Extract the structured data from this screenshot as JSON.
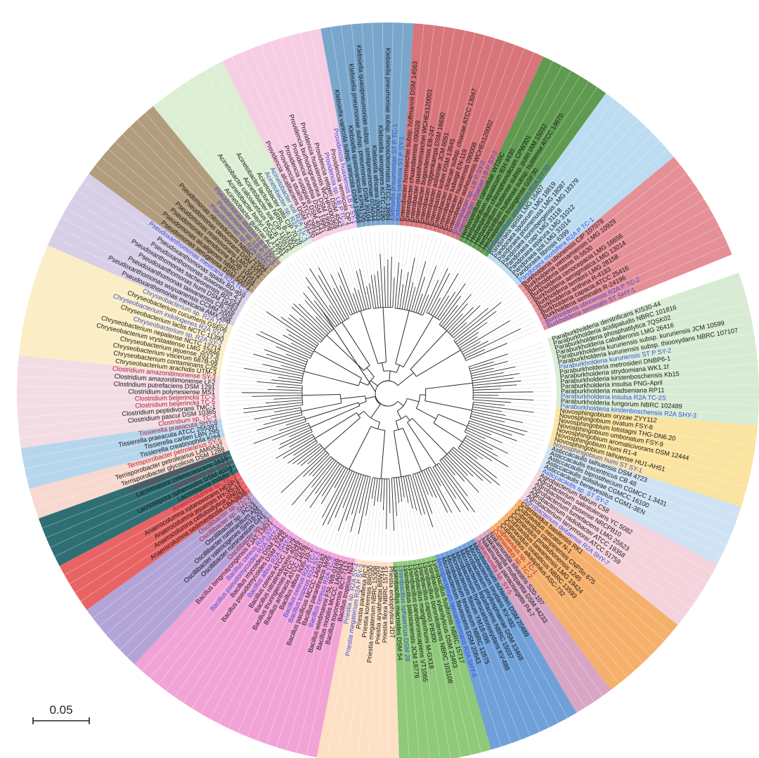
{
  "scale_bar": {
    "label": "0.05"
  },
  "colors": {
    "ref": "#1a1a1a",
    "isolate_blue": "#3a4fd8",
    "isolate_red": "#b0213a",
    "branch": "#2a2a2a"
  },
  "clades": [
    {
      "name": "Paraburkholderia",
      "color": "#d8ecd3",
      "leaves": [
        {
          "t": "Paraburkholderia denitrificans KIS30-44"
        },
        {
          "t": "Paraburkholderia acidipaludis NBRC 101816"
        },
        {
          "t": "Paraburkholderia phosphatilytica 7QSK02"
        },
        {
          "t": "Paraburkholderia caballeronis LMG 26416"
        },
        {
          "t": "Paraburkholderia kururiensis subsp. kururiensis JCM 10599"
        },
        {
          "t": "Paraburkholderia kururiensis subsp. thiooxydans NBRC 107107"
        },
        {
          "t": "Paraburkholderia kururiensis ST P SY-2",
          "c": "b"
        },
        {
          "t": "Paraburkholderia metrosideri DNBP6-1"
        },
        {
          "t": "Paraburkholderia strydomiana WK1.1f"
        },
        {
          "t": "Paraburkholderia kirstenboschensis Kb15"
        },
        {
          "t": "Paraburkholderia insulsa PNG-April"
        },
        {
          "t": "Paraburkholderia madseniana RP11"
        },
        {
          "t": "Paraburkholderia insulsa R2A TC-2S",
          "c": "b"
        },
        {
          "t": "Paraburkholderia fungorum NBRC 102489"
        },
        {
          "t": "Paraburkholderia kirstenboschensis R2A SHY-3",
          "c": "b"
        }
      ]
    },
    {
      "name": "Novosphingobium",
      "color": "#fbe3a0",
      "leaves": [
        {
          "t": "Novosphingobium oryzae ZYY112"
        },
        {
          "t": "Novosphingobium ovatum FSY-8"
        },
        {
          "t": "Novosphingobium lotistagni THG-DN6.20"
        },
        {
          "t": "Novosphingobium umbonatum FSY-9"
        },
        {
          "t": "Novosphingobium aromaticivorans DSM 12444"
        },
        {
          "t": "Novosphingobium humi R1-4"
        },
        {
          "t": "Novosphingobium taihuense HU1-AH51"
        },
        {
          "t": "Novosphingobium humi ST SY-1",
          "c": "b"
        }
      ]
    },
    {
      "name": "Asticcacaulis",
      "color": "#cfe2f3",
      "leaves": [
        {
          "t": "Asticcacaulis taihuensis DSM 4723"
        },
        {
          "t": "Asticcacaulis excentricus CB 48"
        },
        {
          "t": "Asticcacaulis biprosthecium CGMCC 1.3431"
        },
        {
          "t": "Asticcacaulis solisilvae CGMCC 16100"
        },
        {
          "t": "Asticcacaulis benevestitus CGM1-3EN"
        },
        {
          "t": "Asticcacaulis sp. ST SY-2",
          "c": "b"
        }
      ]
    },
    {
      "name": "Agrobacterium",
      "color": "#f4d3dc",
      "leaves": [
        {
          "t": "Agrobacterium fabrum C58"
        },
        {
          "t": "Agrobacterium salinitolerans YC 5082"
        },
        {
          "t": "Agrobacterium pusense NRCPB10"
        },
        {
          "t": "Agrobacterium tumefaciens LMG 25623"
        },
        {
          "t": "Agrobacterium radiobacter ATCC 19358"
        },
        {
          "t": "Agrobacterium larrymoorei ATCC 51759"
        },
        {
          "t": "Agrobacterium deltaense R2A SHY-7",
          "c": "b"
        }
      ]
    },
    {
      "name": "Cupriavidus",
      "color": "#f5b06b",
      "leaves": [
        {
          "t": "Cupriavidus basilensis RK1"
        },
        {
          "t": "Cupriavidus necator N-1"
        },
        {
          "t": "Cupriavidus campinensis CNPSo 675"
        },
        {
          "t": "Cupriavidus pinatubonensis 1245"
        },
        {
          "t": "Cupriavidus taiwanensis LMG 19424"
        },
        {
          "t": "Cupriavidus oxalaticus NBRC 13593"
        },
        {
          "t": "Cupriavidus alkaliphilus ASC-732"
        },
        {
          "t": "Cupriavidus sp. TC-1",
          "c": "r"
        },
        {
          "t": "Cupriavidus sp. TC-2",
          "c": "r"
        }
      ]
    },
    {
      "name": "Nakamurella",
      "color": "#d8a6c4",
      "leaves": [
        {
          "t": "Nakamurella silvestris S20-107"
        },
        {
          "t": "Nakamurella multipartita DSM 44233"
        },
        {
          "t": "Nakamurella panacisegetis P4-7"
        },
        {
          "t": "Nakamurella sp. SY-5",
          "c": "r"
        }
      ]
    },
    {
      "name": "Microbacterium",
      "color": "#6fa0d8",
      "leaves": [
        {
          "t": "Microbacterium schleiferi DSM 20489"
        },
        {
          "t": "Microbacterium oxydans KV-492"
        },
        {
          "t": "Microbacterium phyllosphaerae DSM 13468"
        },
        {
          "t": "Microbacterium liquefaciens NBRC 15037"
        },
        {
          "t": "Microbacterium hydrocarbonoxydans KV-488"
        },
        {
          "t": "Microbacterium flavum YM18-098"
        },
        {
          "t": "Microbacterium testaceum NBRC 12675"
        },
        {
          "t": "Microbacterium flavescens DSM 20643"
        },
        {
          "t": "Microbacterium laevaniformans R2A SHY-6",
          "c": "b"
        }
      ]
    },
    {
      "name": "Lysinibacillus",
      "color": "#8fc97a",
      "leaves": [
        {
          "t": "Lysinibacillus fusiformis NBRC 15717"
        },
        {
          "t": "Lysinibacillus xylanilyticus DSM 23493"
        },
        {
          "t": "Lysinibacillus boronitolerans NBRC 103108"
        },
        {
          "t": "Lysinibacillus capsici PB300"
        },
        {
          "t": "Lysinibacillus mangiferihumi M-GX18"
        },
        {
          "t": "Lysinibacillus parviboronicapiens VT1065"
        },
        {
          "t": "Lysinibacillus pakistanensis JCM 18776"
        },
        {
          "t": "Lysinibacillus sphaericus DSM 28",
          "c": "b"
        },
        {
          "t": "Lysinibacillus macroides DSM 54"
        }
      ]
    },
    {
      "name": "Priestia",
      "color": "#fde0c5",
      "leaves": [
        {
          "t": "Priestia endophytica 2DT"
        },
        {
          "t": "Priestia flexa NBRC 15715"
        },
        {
          "t": "Priestia aryabhattai B8W22"
        },
        {
          "t": "Priestia megaterium NBRC 15308"
        },
        {
          "t": "Priestia koreensis BR030"
        },
        {
          "t": "Priestia paraflexa RC2"
        },
        {
          "t": "Priestia megaterium R2A P SY-3",
          "c": "b"
        },
        {
          "t": "Priestia sp. R2A SY-4",
          "c": "b"
        }
      ]
    },
    {
      "name": "Bacillus",
      "color": "#f2a3d6",
      "leaves": [
        {
          "t": "Bacillus tropicus N24"
        },
        {
          "t": "Bacillus toyonensis BCT-7112"
        },
        {
          "t": "Bacillus mobilis MCCC 1A05942"
        },
        {
          "t": "Bacillus wiedmannii FSL W8-0169"
        },
        {
          "t": "Bacillus cereus R2A TC-2",
          "c": "b"
        },
        {
          "t": "Bacillus paranthracis Mn5"
        },
        {
          "t": "Bacillus pacificus MCCC 1A06182"
        },
        {
          "t": "Bacillus tropicus R2A SY-2",
          "c": "b"
        },
        {
          "t": "Bacillus cereus R2A TC-1",
          "c": "b"
        },
        {
          "t": "Bacillus albus N35-10-2"
        },
        {
          "t": "Bacillus anthracis ATCC 14578"
        },
        {
          "t": "Bacillus thuringiensis ATCC 10792"
        },
        {
          "t": "Bacillus nitratireducens 4049"
        },
        {
          "t": "Bacillus cereus ATCC 14579"
        },
        {
          "t": "Bacillus albus R2A SHY-5",
          "c": "b"
        },
        {
          "t": "Bacillus pseudomycoides DSM 12442"
        },
        {
          "t": "Bacillus mycoides DSM 2048"
        },
        {
          "t": "Bacillus pseudomycoides R2A SHY-4",
          "c": "b"
        },
        {
          "t": "Bacillus cereus R2A SY-1",
          "c": "b"
        },
        {
          "t": "Bacillus bingmayongensis FJAT-13831"
        }
      ]
    },
    {
      "name": "Oscillibacter",
      "color": "#b3a4d8",
      "leaves": [
        {
          "t": "Oscillibacter sp. 1-3",
          "c": "r"
        },
        {
          "t": "Oscillibacter ruminantium GH1"
        },
        {
          "t": "Oscillibacter valericigenes Sjm18-20"
        },
        {
          "t": "Oscillibacter ruminantium AM"
        },
        {
          "t": "Oscillibacter sp. PC13"
        },
        {
          "t": "Oscillibacter sp. SHY-2",
          "c": "r"
        },
        {
          "t": "Oscillibacter sp. TC-3",
          "c": "r"
        }
      ]
    },
    {
      "name": "Anaerocolumna",
      "color": "#e86464",
      "leaves": [
        {
          "t": "Anaerocolumna sedimenticola CBA3638"
        },
        {
          "t": "Anaerocolumna cellulosilytica SN021"
        },
        {
          "t": "Anaerocolumna jejuensis HY-35-12"
        },
        {
          "t": "Anaerocolumna xylanovorans HESP1"
        },
        {
          "t": "Anaerocolumna sp. TC-2",
          "c": "r"
        }
      ]
    },
    {
      "name": "Lacrimispora",
      "color": "#2f6f74",
      "leaves": [
        {
          "t": "Lacrimispora indolis T"
        },
        {
          "t": "Lacrimispora sphenoides DSM 4024"
        },
        {
          "t": "Lacrimispora sp. SY-4",
          "c": "r"
        },
        {
          "t": "Lacrimispora celerecrescens JA19"
        },
        {
          "t": "Lacrimispora celerecrescens SHY-3",
          "c": "r"
        }
      ]
    },
    {
      "name": "Terrisporobacter",
      "color": "#f7d9d0",
      "leaves": [
        {
          "t": "Terrisporobacter glycolicus DSM 1288"
        },
        {
          "t": "Terrisporobacter petrolearius LAM0A37"
        },
        {
          "t": "Terrisporobacter petrolearius SY-5",
          "c": "r"
        }
      ]
    },
    {
      "name": "Tissierella",
      "color": "#b6d6ee",
      "leaves": [
        {
          "t": "Tissierella creatinophila Kre4"
        },
        {
          "t": "Tissierella carlieri LBN 295"
        },
        {
          "t": "Tissierella praeacuta ATCC 25539T"
        },
        {
          "t": "Tissierella praeacuta SHY-4",
          "c": "r"
        }
      ]
    },
    {
      "name": "Clostridium",
      "color": "#f3dde4",
      "leaves": [
        {
          "t": "Clostridium sp. TC-4",
          "c": "r"
        },
        {
          "t": "Clostridium pascui DSM 10365"
        },
        {
          "t": "Clostridium peptidivorans TMC-1"
        },
        {
          "t": "Clostridium beijerinckii TC-5",
          "c": "r"
        },
        {
          "t": "Clostridium beijerinckii TC-3",
          "c": "r"
        },
        {
          "t": "Clostridium polynesiense MS1"
        },
        {
          "t": "Clostridium putrefaciens DSM 1291"
        },
        {
          "t": "Clostridium amazonitimonense LF2"
        },
        {
          "t": "Clostridium amazonitimonense SY-3",
          "c": "r"
        }
      ]
    },
    {
      "name": "Chryseobacterium",
      "color": "#fbeec5",
      "leaves": [
        {
          "t": "Chryseobacterium arachidis UTM-3"
        },
        {
          "t": "Chryseobacterium contaminans C26"
        },
        {
          "t": "Chryseobacterium viscerum 687B-08"
        },
        {
          "t": "Chryseobacterium jejuense JS17-8"
        },
        {
          "t": "Chryseobacterium vrystaatense LMG 22846"
        },
        {
          "t": "Chryseobacterium nepalense NCTC 12714"
        },
        {
          "t": "Chryseobacterium sp. R2A SY-2",
          "c": "b"
        },
        {
          "t": "Chryseobacterium lactis NCTC 11390"
        },
        {
          "t": "Chryseobacterium indologenes R2A SY-1",
          "c": "b"
        },
        {
          "t": "Chryseobacterium cucumeris GSE06"
        },
        {
          "t": "Chryseobacterium sp. R2A TC-1",
          "c": "b"
        }
      ]
    },
    {
      "name": "Pseudoxanthomonas",
      "color": "#d7cfe8",
      "leaves": [
        {
          "t": "Pseudoxanthomonas mexicana AMX 26B"
        },
        {
          "t": "Pseudoxanthomonas wuyuanensis CCMM 2005"
        },
        {
          "t": "Pseudoxanthomonas taiwanensis CB-226"
        },
        {
          "t": "Pseudoxanthomonas humi DSM 18483"
        },
        {
          "t": "Pseudoxanthomonas sacheonensis BD-c54"
        },
        {
          "t": "Pseudoxanthomonas suwonensis 4-1"
        },
        {
          "t": "Pseudoxanthomonas spadix BD-a59"
        },
        {
          "t": "Pseudoxanthomonas mexicana R2A TC-2",
          "c": "b"
        }
      ]
    },
    {
      "name": "Pseudomonas",
      "color": "#b29c7e",
      "leaves": [
        {
          "t": "Pseudomonas aeruginosa DSM 50071"
        },
        {
          "t": "Pseudomonas alcaligenes NBRC 14159"
        },
        {
          "t": "Pseudomonas mendocina NCIB 10541"
        },
        {
          "t": "Pseudomonas resinovorans LMG 2274"
        },
        {
          "t": "Pseudomonas oleovorans DSM 1045"
        },
        {
          "t": "Pseudomonas nitroreducens NBRC 12694"
        },
        {
          "t": "Pseudomonas sp. R2A SHY-1",
          "c": "b"
        },
        {
          "t": "Pseudomonas sp. LB P TC-3",
          "c": "b"
        },
        {
          "t": "Pseudomonas stutzeri LB P TC-1",
          "c": "b"
        }
      ]
    },
    {
      "name": "Acinetobacter",
      "color": "#dcefd4",
      "leaves": [
        {
          "t": "Acinetobacter guerrae AC1271"
        },
        {
          "t": "Acinetobacter baylyi DSM 14961"
        },
        {
          "t": "Acinetobacter calcoaceticus NCCB 22016"
        },
        {
          "t": "Acinetobacter soli CIP 110264"
        },
        {
          "t": "Acinetobacter lactucae NRRL B-41902"
        },
        {
          "t": "Acinetobacter pittii CIP 70.29"
        },
        {
          "t": "Acinetobacter sp. R2A TC-3",
          "c": "b"
        },
        {
          "t": "Acinetobacter soli R2A TC-1",
          "c": "b"
        }
      ]
    },
    {
      "name": "Providencia",
      "color": "#f7cde4",
      "leaves": [
        {
          "t": "Providencia alcalifaciens DSM 30120"
        },
        {
          "t": "Providencia stuartii ATCC 29914"
        },
        {
          "t": "Providencia rustigianii DSM 4541"
        },
        {
          "t": "Providencia sneebia DSM 19967"
        },
        {
          "t": "Providencia burhodogranariea DSM 19968"
        },
        {
          "t": "Providencia huaxiensis WCHPr000369"
        },
        {
          "t": "Providencia rettgeri DSM 4542"
        },
        {
          "t": "Providencia sp. LB P TC-2",
          "c": "b"
        },
        {
          "t": "Providencia vermicola OP1"
        },
        {
          "t": "Providencia huaxiensis LB P SY-1",
          "c": "b"
        }
      ]
    },
    {
      "name": "Klebsiella",
      "color": "#7aa6cc",
      "leaves": [
        {
          "t": "Klebsiella variicola subsp. variicola DSM 15968"
        },
        {
          "t": "Klebsiella quasivariicola KPN1705"
        },
        {
          "t": "Klebsiella pneumoniae subsp. pneumoniae DSM 30104"
        },
        {
          "t": "Klebsiella quasipneumoniae subsp. similipneumoniae 07A044"
        },
        {
          "t": "Klebsiella africana 200023"
        },
        {
          "t": "Klebsiella aerogenes KCTC 2190"
        },
        {
          "t": "Klebsiella pneumoniae subsp. rhinoscleromatis ATCC 13884"
        },
        {
          "t": "Klebsiella pneumoniae ST P TC-1",
          "c": "b"
        },
        {
          "t": "Klebsiella variicola ST P SY-1",
          "c": "b"
        }
      ]
    },
    {
      "name": "Enterobacter",
      "color": "#d7757b",
      "leaves": [
        {
          "t": "Enterobacter hormaechei subsp. hoffmannii DSM 14563"
        },
        {
          "t": "Enterobacter chuandaensis 090028"
        },
        {
          "t": "Enterobacter quasihormaechei WCHEs120003"
        },
        {
          "t": "Enterobacter bugandensis EB-247"
        },
        {
          "t": "Enterobacter roggenkampii DSM 16690"
        },
        {
          "t": "Enterobacter asburiae JCM 6051"
        },
        {
          "t": "Enterobacter kobei DSM 13645"
        },
        {
          "t": "Enterobacter cloacae subsp. cloacae ATCC 13047"
        },
        {
          "t": "Enterobacter ludwigii EN-119"
        },
        {
          "t": "Enterobacter huaxiensis 090008"
        },
        {
          "t": "Enterobacter wuhouensis WCHEs120002"
        },
        {
          "t": "Enterobacter sp. LB P SY-2",
          "c": "b"
        },
        {
          "t": "Enterobacter cloacae LB P SY-3",
          "c": "b"
        }
      ]
    },
    {
      "name": "Herbaspirillum",
      "color": "#5f9a50",
      "leaves": [
        {
          "t": "Herbaspirillum camelliae WT00C"
        },
        {
          "t": "Herbaspirillum aquaticum IEH 4430"
        },
        {
          "t": "Herbaspirillum chlorophenolicum CPW301"
        },
        {
          "t": "Herbaspirillum huttiense subsp. putei IAM 15032"
        },
        {
          "t": "Herbaspirillum huttiense subsp. huttiense ATCC 14670"
        },
        {
          "t": "Herbaspirillum frisingense GSF30"
        },
        {
          "t": "Herbaspirillum aquaticum R2A SY-3S",
          "c": "b"
        }
      ]
    },
    {
      "name": "Pandoraea",
      "color": "#bcdcf1",
      "leaves": [
        {
          "t": "Pandoraea apista LMG 16407"
        },
        {
          "t": "Pandoraea sputorum LMG 18819"
        },
        {
          "t": "Pandoraea pnomenusa LMG 18087"
        },
        {
          "t": "Pandoraea norimbergensis LMG 18379"
        },
        {
          "t": "Pandoraea capi LMG 31118"
        },
        {
          "t": "Pandoraea eparura LMG 31012"
        },
        {
          "t": "Pandoraea soli LMG 31014"
        },
        {
          "t": "Pandoraea fibrosis 6399"
        },
        {
          "t": "Pandoraea morbifera R2A P TC-1",
          "c": "b"
        }
      ]
    },
    {
      "name": "Burkholderia",
      "color": "#e58f97",
      "leaves": [
        {
          "t": "Burkholderia ubonensis CIP 107078"
        },
        {
          "t": "Burkholderia vietnamiensis LMG 10929"
        },
        {
          "t": "Burkholderia latens R-5630"
        },
        {
          "t": "Burkholderia cenocepacia LMG 16656"
        },
        {
          "t": "Burkholderia aenigmatica LMG 13014"
        },
        {
          "t": "Burkholderia territorii LMG 28158"
        },
        {
          "t": "Burkholderia anthina R-4183"
        },
        {
          "t": "Burkholderia capacia ATCC 25416"
        },
        {
          "t": "Burkholderia seminalis R-24196"
        },
        {
          "t": "Burkholderia ubonensis R2A P TC-2",
          "c": "b"
        },
        {
          "t": "Burkholderia seminalis ST SHY-1",
          "c": "b"
        }
      ]
    }
  ]
}
